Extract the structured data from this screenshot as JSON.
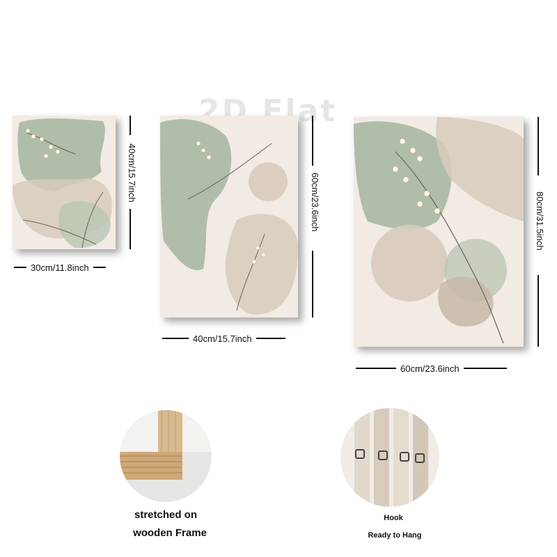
{
  "watermark": "2D Flat",
  "canvases": [
    {
      "width_label": "30cm/11.8inch",
      "height_label": "40cm/15.7inch"
    },
    {
      "width_label": "40cm/15.7inch",
      "height_label": "60cm/23.6inch"
    },
    {
      "width_label": "60cm/23.6inch",
      "height_label": "80cm/31.5inch"
    }
  ],
  "features": {
    "frame": {
      "line1": "stretched on",
      "line2": "wooden Frame"
    },
    "hook": {
      "line1": "Hook",
      "line2": "Ready to Hang"
    }
  },
  "colors": {
    "sage": "#a3b5a0",
    "beige": "#d8cbbd",
    "cream": "#f1ebe3",
    "wood": "#d9b98f"
  }
}
